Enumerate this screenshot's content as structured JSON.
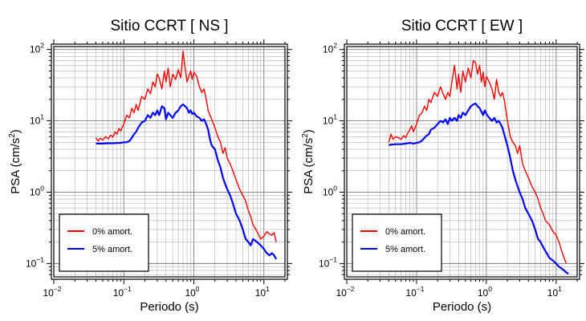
{
  "chart_data": [
    {
      "type": "line",
      "title": "Sitio CCRT [ NS ]",
      "xlabel": "Periodo (s)",
      "ylabel": "PSA (cm/s²)",
      "ylabel_parts": {
        "pre": "PSA (cm/s",
        "sup": "2",
        "post": ")"
      },
      "xscale": "log",
      "yscale": "log",
      "xlim": [
        0.01,
        20
      ],
      "ylim": [
        0.065,
        110
      ],
      "x_ticks": [
        0.01,
        0.1,
        1,
        10
      ],
      "y_ticks": [
        0.1,
        1,
        10,
        100
      ],
      "tick_base": "10",
      "x_tick_exps": [
        "−2",
        "−1",
        "0",
        "1"
      ],
      "y_tick_exps": [
        "−1",
        "0",
        "1",
        "2"
      ],
      "grid": true,
      "legend_position": "bottom-left",
      "series": [
        {
          "name": "0% amort.",
          "color": "#ff0000",
          "x": [
            0.04,
            0.043,
            0.046,
            0.05,
            0.055,
            0.06,
            0.065,
            0.07,
            0.075,
            0.08,
            0.085,
            0.09,
            0.1,
            0.11,
            0.12,
            0.13,
            0.14,
            0.15,
            0.16,
            0.18,
            0.2,
            0.22,
            0.24,
            0.26,
            0.28,
            0.3,
            0.32,
            0.35,
            0.38,
            0.4,
            0.43,
            0.46,
            0.5,
            0.55,
            0.6,
            0.65,
            0.7,
            0.75,
            0.8,
            0.85,
            0.9,
            0.95,
            1.0,
            1.1,
            1.2,
            1.3,
            1.4,
            1.5,
            1.6,
            1.7,
            1.8,
            2.0,
            2.2,
            2.4,
            2.6,
            2.8,
            3.0,
            3.3,
            3.6,
            4.0,
            4.5,
            5.0,
            5.5,
            6.0,
            6.5,
            7.0,
            8.0,
            9.0,
            10.0,
            11.0,
            12.0,
            13.0,
            14.0,
            15.0
          ],
          "y": [
            5.8,
            5.2,
            5.7,
            5.4,
            6.0,
            5.6,
            6.3,
            5.9,
            7.0,
            6.5,
            7.8,
            7.2,
            9.0,
            12.0,
            11.0,
            15.0,
            13.0,
            17.0,
            14.0,
            22.0,
            20.0,
            28.0,
            24.0,
            35.0,
            30.0,
            45.0,
            40.0,
            28.0,
            50.0,
            35.0,
            55.0,
            30.0,
            45.0,
            38.0,
            52.0,
            40.0,
            95.0,
            55.0,
            35.0,
            42.0,
            50.0,
            38.0,
            48.0,
            42.0,
            30.0,
            25.0,
            28.0,
            20.0,
            14.0,
            12.0,
            10.5,
            8.0,
            6.0,
            5.0,
            3.5,
            4.2,
            3.0,
            2.5,
            2.0,
            1.5,
            1.1,
            0.9,
            0.75,
            0.55,
            0.45,
            0.35,
            0.28,
            0.22,
            0.24,
            0.28,
            0.26,
            0.25,
            0.27,
            0.2
          ]
        },
        {
          "name": "5% amort.",
          "color": "#0000ff",
          "x": [
            0.04,
            0.05,
            0.06,
            0.07,
            0.08,
            0.09,
            0.1,
            0.11,
            0.12,
            0.13,
            0.14,
            0.15,
            0.16,
            0.18,
            0.2,
            0.22,
            0.24,
            0.26,
            0.28,
            0.3,
            0.32,
            0.35,
            0.38,
            0.4,
            0.43,
            0.46,
            0.5,
            0.55,
            0.6,
            0.65,
            0.7,
            0.75,
            0.8,
            0.85,
            0.9,
            0.95,
            1.0,
            1.1,
            1.2,
            1.3,
            1.4,
            1.5,
            1.6,
            1.7,
            1.8,
            2.0,
            2.2,
            2.4,
            2.6,
            2.8,
            3.0,
            3.3,
            3.6,
            4.0,
            4.5,
            5.0,
            5.5,
            6.0,
            6.5,
            7.0,
            8.0,
            9.0,
            10.0,
            11.0,
            12.0,
            13.0,
            14.0,
            15.0
          ],
          "y": [
            4.8,
            4.8,
            4.85,
            4.85,
            4.9,
            4.9,
            5.0,
            5.0,
            5.2,
            5.8,
            6.5,
            7.0,
            8.0,
            9.5,
            10.0,
            12.0,
            11.0,
            13.0,
            12.0,
            14.0,
            12.0,
            16.0,
            15.0,
            10.5,
            13.0,
            12.0,
            11.0,
            13.0,
            14.0,
            16.0,
            17.0,
            16.0,
            15.0,
            13.0,
            14.0,
            12.5,
            13.0,
            11.5,
            11.0,
            10.0,
            10.5,
            9.0,
            7.5,
            5.5,
            4.5,
            4.0,
            2.8,
            2.2,
            1.6,
            1.3,
            1.1,
            0.9,
            0.7,
            0.5,
            0.4,
            0.3,
            0.22,
            0.2,
            0.18,
            0.22,
            0.2,
            0.18,
            0.16,
            0.14,
            0.13,
            0.14,
            0.13,
            0.115
          ]
        }
      ]
    },
    {
      "type": "line",
      "title": "Sitio CCRT [ EW ]",
      "xlabel": "Periodo (s)",
      "ylabel": "PSA (cm/s²)",
      "ylabel_parts": {
        "pre": "PSA (cm/s",
        "sup": "2",
        "post": ")"
      },
      "xscale": "log",
      "yscale": "log",
      "xlim": [
        0.01,
        20
      ],
      "ylim": [
        0.065,
        110
      ],
      "x_ticks": [
        0.01,
        0.1,
        1,
        10
      ],
      "y_ticks": [
        0.1,
        1,
        10,
        100
      ],
      "tick_base": "10",
      "x_tick_exps": [
        "−2",
        "−1",
        "0",
        "1"
      ],
      "y_tick_exps": [
        "−1",
        "0",
        "1",
        "2"
      ],
      "grid": true,
      "legend_position": "bottom-left",
      "series": [
        {
          "name": "0% amort.",
          "color": "#ff0000",
          "x": [
            0.04,
            0.043,
            0.046,
            0.05,
            0.055,
            0.06,
            0.065,
            0.07,
            0.075,
            0.08,
            0.085,
            0.09,
            0.1,
            0.11,
            0.12,
            0.13,
            0.14,
            0.15,
            0.16,
            0.18,
            0.2,
            0.22,
            0.24,
            0.26,
            0.28,
            0.3,
            0.32,
            0.35,
            0.38,
            0.4,
            0.43,
            0.46,
            0.5,
            0.55,
            0.6,
            0.65,
            0.7,
            0.75,
            0.8,
            0.85,
            0.9,
            0.95,
            1.0,
            1.1,
            1.2,
            1.3,
            1.4,
            1.5,
            1.6,
            1.7,
            1.8,
            2.0,
            2.2,
            2.4,
            2.6,
            2.8,
            3.0,
            3.3,
            3.6,
            4.0,
            4.5,
            5.0,
            5.5,
            6.0,
            6.5,
            7.0,
            8.0,
            9.0,
            10.0,
            11.0,
            12.0,
            13.0,
            14.0
          ],
          "y": [
            5.0,
            6.5,
            5.5,
            6.0,
            5.8,
            5.5,
            6.2,
            5.8,
            6.8,
            7.5,
            8.5,
            7.0,
            9.0,
            12.0,
            13.0,
            16.0,
            14.0,
            20.0,
            18.0,
            25.0,
            22.0,
            30.0,
            24.0,
            20.0,
            25.0,
            22.0,
            35.0,
            60.0,
            28.0,
            45.0,
            25.0,
            50.0,
            35.0,
            55.0,
            40.0,
            70.0,
            65.0,
            45.0,
            60.0,
            35.0,
            48.0,
            30.0,
            42.0,
            35.0,
            28.0,
            20.0,
            38.0,
            25.0,
            22.0,
            25.0,
            20.0,
            10.0,
            6.0,
            5.0,
            4.5,
            3.5,
            4.5,
            2.5,
            2.0,
            1.6,
            1.2,
            1.0,
            0.8,
            0.6,
            0.5,
            0.4,
            0.35,
            0.28,
            0.25,
            0.2,
            0.15,
            0.12,
            0.1
          ]
        },
        {
          "name": "5% amort.",
          "color": "#0000ff",
          "x": [
            0.04,
            0.05,
            0.06,
            0.07,
            0.08,
            0.09,
            0.1,
            0.11,
            0.12,
            0.13,
            0.14,
            0.15,
            0.16,
            0.18,
            0.2,
            0.22,
            0.24,
            0.26,
            0.28,
            0.3,
            0.32,
            0.35,
            0.38,
            0.4,
            0.43,
            0.46,
            0.5,
            0.55,
            0.6,
            0.65,
            0.7,
            0.75,
            0.8,
            0.85,
            0.9,
            0.95,
            1.0,
            1.1,
            1.2,
            1.3,
            1.4,
            1.5,
            1.6,
            1.7,
            1.8,
            2.0,
            2.2,
            2.4,
            2.6,
            2.8,
            3.0,
            3.3,
            3.6,
            4.0,
            4.5,
            5.0,
            5.5,
            6.0,
            6.5,
            7.0,
            8.0,
            9.0,
            10.0,
            11.0,
            12.0,
            13.0,
            14.0,
            15.0
          ],
          "y": [
            4.6,
            4.7,
            4.7,
            4.8,
            4.9,
            4.8,
            4.9,
            5.0,
            5.3,
            5.8,
            6.2,
            6.5,
            7.5,
            8.0,
            9.0,
            10.0,
            9.5,
            10.5,
            9.0,
            11.0,
            10.0,
            11.0,
            10.0,
            12.0,
            11.0,
            13.0,
            12.0,
            14.0,
            16.0,
            17.0,
            17.5,
            16.0,
            15.0,
            13.5,
            12.0,
            14.0,
            12.5,
            11.0,
            10.0,
            11.0,
            9.5,
            10.0,
            9.0,
            8.0,
            6.5,
            4.5,
            3.0,
            2.0,
            1.5,
            1.2,
            1.0,
            0.8,
            0.6,
            0.5,
            0.4,
            0.3,
            0.22,
            0.2,
            0.17,
            0.15,
            0.12,
            0.11,
            0.1,
            0.09,
            0.085,
            0.08,
            0.075,
            0.072
          ]
        }
      ]
    }
  ]
}
